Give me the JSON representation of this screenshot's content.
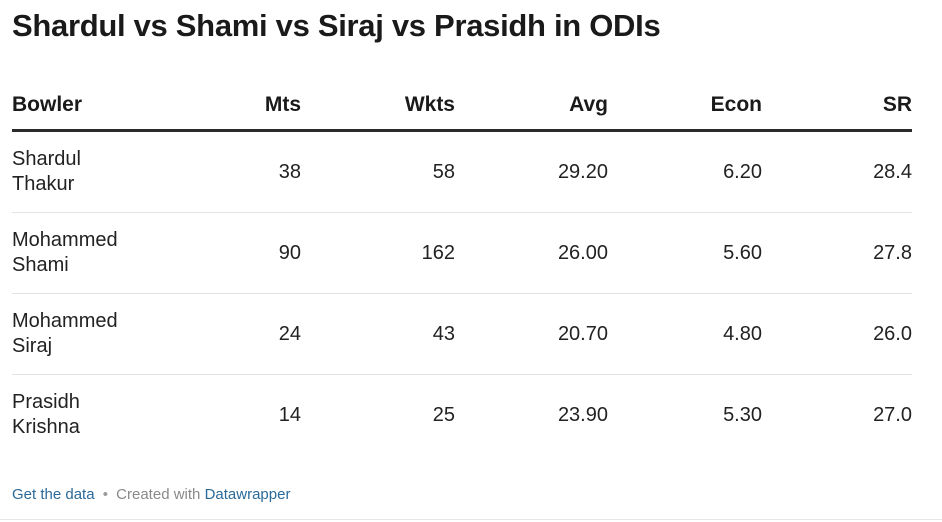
{
  "title": "Shardul vs Shami vs Siraj vs Prasidh in ODIs",
  "chart_data": {
    "type": "table",
    "title": "Shardul vs Shami vs Siraj vs Prasidh in ODIs",
    "columns": [
      "Bowler",
      "Mts",
      "Wkts",
      "Avg",
      "Econ",
      "SR"
    ],
    "rows": [
      {
        "bowler": [
          "Shardul",
          "Thakur"
        ],
        "mts": "38",
        "wkts": "58",
        "avg": "29.20",
        "econ": "6.20",
        "sr": "28.4"
      },
      {
        "bowler": [
          "Mohammed",
          "Shami"
        ],
        "mts": "90",
        "wkts": "162",
        "avg": "26.00",
        "econ": "5.60",
        "sr": "27.8"
      },
      {
        "bowler": [
          "Mohammed",
          "Siraj"
        ],
        "mts": "24",
        "wkts": "43",
        "avg": "20.70",
        "econ": "4.80",
        "sr": "26.0"
      },
      {
        "bowler": [
          "Prasidh",
          "Krishna"
        ],
        "mts": "14",
        "wkts": "25",
        "avg": "23.90",
        "econ": "5.30",
        "sr": "27.0"
      }
    ]
  },
  "footer": {
    "get_data": "Get the data",
    "separator": "•",
    "created_with": "Created with",
    "tool": "Datawrapper"
  },
  "colors": {
    "link": "#2b6a99",
    "header_rule": "#2a2a2a",
    "row_rule": "#e2e2e2"
  }
}
